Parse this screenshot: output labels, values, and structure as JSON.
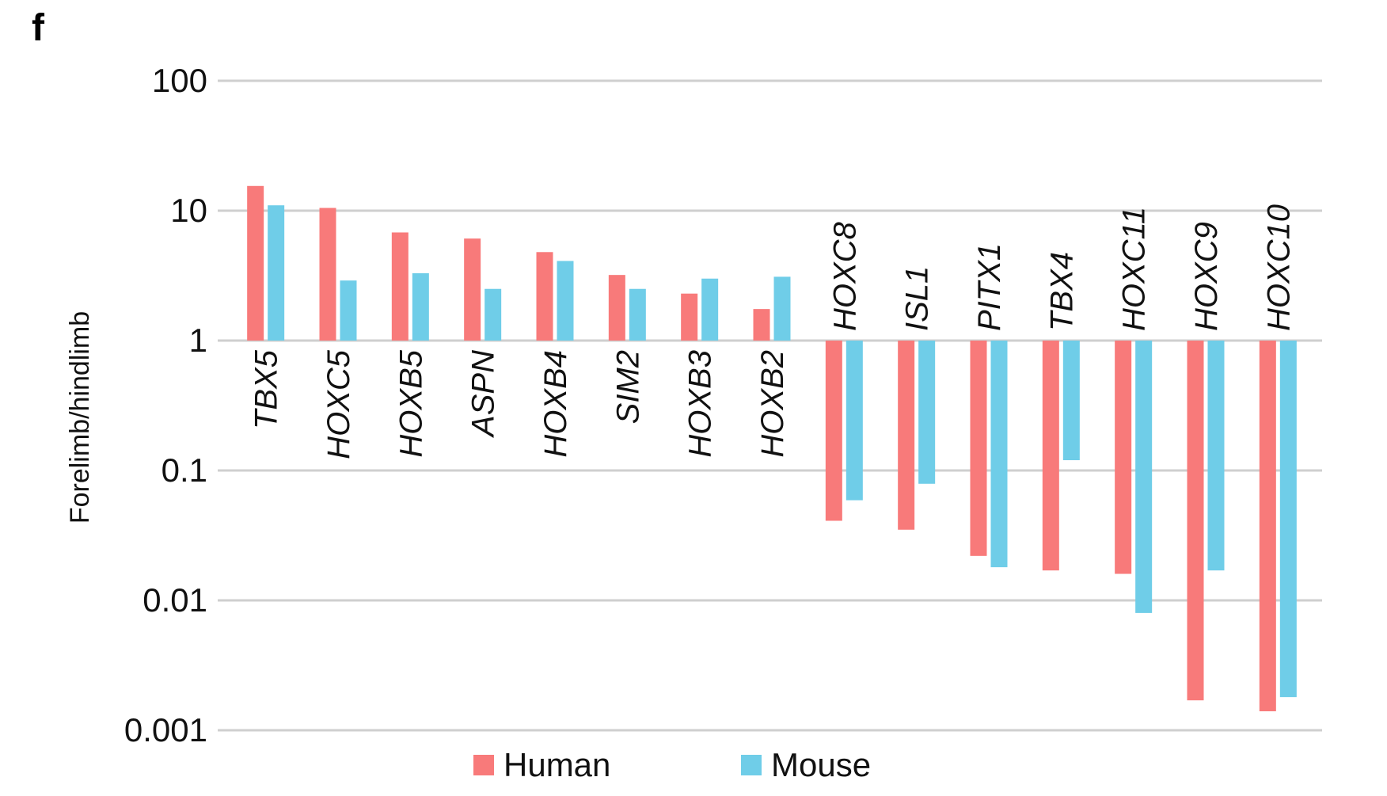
{
  "panel_letter": "f",
  "chart_data": {
    "type": "bar",
    "title": "",
    "xlabel": "",
    "ylabel": "Forelimb/hindlimb",
    "yscale": "log",
    "ylim": [
      0.001,
      100
    ],
    "yticks": [
      {
        "value": 100,
        "label": "100"
      },
      {
        "value": 10,
        "label": "10"
      },
      {
        "value": 1,
        "label": "1"
      },
      {
        "value": 0.1,
        "label": "0.1"
      },
      {
        "value": 0.01,
        "label": "0.01"
      },
      {
        "value": 0.001,
        "label": "0.001"
      }
    ],
    "grid": true,
    "legend_position": "bottom",
    "categories": [
      "TBX5",
      "HOXC5",
      "HOXB5",
      "ASPN",
      "HOXB4",
      "SIM2",
      "HOXB3",
      "HOXB2",
      "HOXC8",
      "ISL1",
      "PITX1",
      "TBX4",
      "HOXC11",
      "HOXC9",
      "HOXC10"
    ],
    "series": [
      {
        "name": "Human",
        "color": "#f87a7a",
        "values": [
          15.5,
          10.5,
          6.8,
          6.1,
          4.8,
          3.2,
          2.3,
          1.75,
          0.041,
          0.035,
          0.022,
          0.017,
          0.016,
          0.0017,
          0.0014
        ]
      },
      {
        "name": "Mouse",
        "color": "#6fcde8",
        "values": [
          11.0,
          2.9,
          3.3,
          2.5,
          4.1,
          2.5,
          3.0,
          3.1,
          0.059,
          0.079,
          0.018,
          0.12,
          0.008,
          0.017,
          0.0018
        ]
      }
    ]
  }
}
